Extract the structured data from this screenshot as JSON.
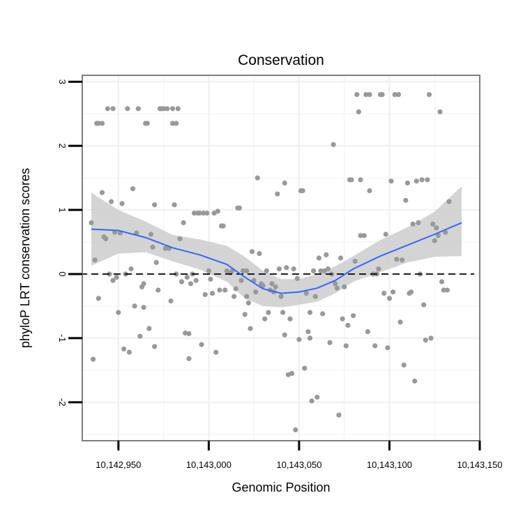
{
  "chart_data": {
    "type": "scatter",
    "title": "Conservation",
    "xlabel": "Genomic Position",
    "ylabel": "phyloP LRT conservation scores",
    "xlim": [
      10142930,
      10143150
    ],
    "ylim": [
      -2.6,
      3.1
    ],
    "x_ticks": [
      10142950,
      10143000,
      10143050,
      10143100,
      10143150
    ],
    "x_tick_labels": [
      "10,142,950",
      "10,143,000",
      "10,143,050",
      "10,143,100",
      "10,143,150"
    ],
    "y_ticks": [
      -2,
      -1,
      0,
      1,
      2,
      3
    ],
    "y_tick_labels": [
      "-2",
      "-1",
      "0",
      "1",
      "2",
      "3"
    ],
    "reference_line": {
      "y": 0,
      "style": "dashed",
      "color": "#000000"
    },
    "colors": {
      "points": "#999999",
      "smooth": "#3366ff",
      "ribbon": "#cccccc",
      "grid": "#f2f2f2",
      "frame": "#7f7f7f"
    },
    "points": [
      [
        10142935,
        0.8
      ],
      [
        10142936,
        -1.33
      ],
      [
        10142937,
        0.22
      ],
      [
        10142938,
        2.35
      ],
      [
        10142939,
        2.35
      ],
      [
        10142939,
        -0.38
      ],
      [
        10142941,
        2.35
      ],
      [
        10142941,
        1.27
      ],
      [
        10142942,
        0.58
      ],
      [
        10142943,
        0.55
      ],
      [
        10142944,
        2.58
      ],
      [
        10142945,
        0.0
      ],
      [
        10142946,
        1.13
      ],
      [
        10142947,
        2.58
      ],
      [
        10142947,
        -0.1
      ],
      [
        10142948,
        0.65
      ],
      [
        10142949,
        -0.05
      ],
      [
        10142950,
        -0.6
      ],
      [
        10142951,
        0.64
      ],
      [
        10142952,
        1.1
      ],
      [
        10142953,
        -1.17
      ],
      [
        10142954,
        0.0
      ],
      [
        10142955,
        2.58
      ],
      [
        10142956,
        -1.22
      ],
      [
        10142957,
        0.08
      ],
      [
        10142958,
        1.33
      ],
      [
        10142959,
        -0.5
      ],
      [
        10142960,
        0.64
      ],
      [
        10142961,
        2.58
      ],
      [
        10142962,
        -0.97
      ],
      [
        10142963,
        -0.2
      ],
      [
        10142964,
        -0.15
      ],
      [
        10142964,
        -0.52
      ],
      [
        10142965,
        2.35
      ],
      [
        10142966,
        2.35
      ],
      [
        10142967,
        -0.85
      ],
      [
        10142968,
        0.62
      ],
      [
        10142969,
        0.42
      ],
      [
        10142970,
        -1.13
      ],
      [
        10142970,
        1.08
      ],
      [
        10142971,
        0.18
      ],
      [
        10142972,
        -0.25
      ],
      [
        10142973,
        2.58
      ],
      [
        10142974,
        2.58
      ],
      [
        10142975,
        2.58
      ],
      [
        10142976,
        0.4
      ],
      [
        10142977,
        2.58
      ],
      [
        10142978,
        0.4
      ],
      [
        10142979,
        -0.42
      ],
      [
        10142980,
        2.58
      ],
      [
        10142980,
        2.35
      ],
      [
        10142981,
        1.08
      ],
      [
        10142982,
        2.35
      ],
      [
        10142982,
        0.0
      ],
      [
        10142983,
        2.58
      ],
      [
        10142984,
        0.55
      ],
      [
        10142985,
        -0.12
      ],
      [
        10142986,
        0.8
      ],
      [
        10142987,
        -0.92
      ],
      [
        10142988,
        -0.05
      ],
      [
        10142989,
        -0.93
      ],
      [
        10142989,
        -1.32
      ],
      [
        10142990,
        -0.15
      ],
      [
        10142991,
        0.0
      ],
      [
        10142992,
        0.95
      ],
      [
        10142993,
        -0.1
      ],
      [
        10142994,
        0.95
      ],
      [
        10142995,
        0.95
      ],
      [
        10142996,
        -1.1
      ],
      [
        10142997,
        0.95
      ],
      [
        10142998,
        -0.32
      ],
      [
        10142999,
        0.95
      ],
      [
        10143000,
        0.05
      ],
      [
        10143001,
        -0.08
      ],
      [
        10143002,
        -0.3
      ],
      [
        10143003,
        0.95
      ],
      [
        10143004,
        -1.22
      ],
      [
        10143005,
        0.98
      ],
      [
        10143006,
        -0.25
      ],
      [
        10143007,
        0.75
      ],
      [
        10143008,
        0.75
      ],
      [
        10143009,
        -0.25
      ],
      [
        10143010,
        0.05
      ],
      [
        10143012,
        0.02
      ],
      [
        10143013,
        0.05
      ],
      [
        10143014,
        -0.35
      ],
      [
        10143015,
        -0.23
      ],
      [
        10143016,
        1.03
      ],
      [
        10143017,
        1.03
      ],
      [
        10143018,
        -0.1
      ],
      [
        10143019,
        0.05
      ],
      [
        10143020,
        -0.63
      ],
      [
        10143021,
        0.05
      ],
      [
        10143021,
        -0.35
      ],
      [
        10143022,
        -0.45
      ],
      [
        10143023,
        -0.85
      ],
      [
        10143024,
        0.35
      ],
      [
        10143025,
        -0.1
      ],
      [
        10143026,
        -0.28
      ],
      [
        10143027,
        1.5
      ],
      [
        10143028,
        0.32
      ],
      [
        10143029,
        -0.15
      ],
      [
        10143030,
        -0.18
      ],
      [
        10143031,
        -0.7
      ],
      [
        10143032,
        0.05
      ],
      [
        10143033,
        -0.6
      ],
      [
        10143034,
        -0.25
      ],
      [
        10143035,
        -0.15
      ],
      [
        10143036,
        -0.28
      ],
      [
        10143037,
        -0.2
      ],
      [
        10143038,
        1.25
      ],
      [
        10143039,
        0.08
      ],
      [
        10143040,
        -0.35
      ],
      [
        10143041,
        -0.6
      ],
      [
        10143042,
        1.42
      ],
      [
        10143042,
        -0.95
      ],
      [
        10143043,
        0.1
      ],
      [
        10143044,
        -1.57
      ],
      [
        10143045,
        -0.7
      ],
      [
        10143046,
        -1.55
      ],
      [
        10143047,
        0.08
      ],
      [
        10143048,
        -2.43
      ],
      [
        10143049,
        -0.07
      ],
      [
        10143050,
        -1.02
      ],
      [
        10143051,
        1.3
      ],
      [
        10143052,
        1.3
      ],
      [
        10143053,
        -1.47
      ],
      [
        10143054,
        -0.3
      ],
      [
        10143055,
        -0.9
      ],
      [
        10143056,
        -1.0
      ],
      [
        10143056,
        -0.6
      ],
      [
        10143057,
        -1.98
      ],
      [
        10143058,
        0.05
      ],
      [
        10143059,
        -0.35
      ],
      [
        10143060,
        -1.92
      ],
      [
        10143061,
        0.25
      ],
      [
        10143062,
        0.05
      ],
      [
        10143063,
        -0.62
      ],
      [
        10143064,
        0.05
      ],
      [
        10143065,
        0.3
      ],
      [
        10143066,
        0.08
      ],
      [
        10143067,
        -1.07
      ],
      [
        10143068,
        0.0
      ],
      [
        10143069,
        2.02
      ],
      [
        10143070,
        -0.15
      ],
      [
        10143071,
        -0.22
      ],
      [
        10143072,
        -2.2
      ],
      [
        10143073,
        0.25
      ],
      [
        10143074,
        -0.7
      ],
      [
        10143075,
        -0.2
      ],
      [
        10143076,
        -1.12
      ],
      [
        10143077,
        -0.8
      ],
      [
        10143078,
        1.47
      ],
      [
        10143079,
        1.47
      ],
      [
        10143080,
        -0.65
      ],
      [
        10143081,
        0.2
      ],
      [
        10143082,
        2.8
      ],
      [
        10143083,
        2.53
      ],
      [
        10143084,
        1.47
      ],
      [
        10143084,
        0.6
      ],
      [
        10143086,
        0.6
      ],
      [
        10143087,
        2.8
      ],
      [
        10143088,
        -0.9
      ],
      [
        10143089,
        1.3
      ],
      [
        10143089,
        2.8
      ],
      [
        10143091,
        0.0
      ],
      [
        10143092,
        -1.12
      ],
      [
        10143093,
        0.0
      ],
      [
        10143094,
        0.08
      ],
      [
        10143095,
        2.8
      ],
      [
        10143096,
        2.8
      ],
      [
        10143097,
        -0.3
      ],
      [
        10143098,
        0.62
      ],
      [
        10143099,
        -1.15
      ],
      [
        10143100,
        -0.38
      ],
      [
        10143101,
        1.45
      ],
      [
        10143102,
        -0.28
      ],
      [
        10143103,
        2.8
      ],
      [
        10143104,
        0.23
      ],
      [
        10143105,
        2.8
      ],
      [
        10143106,
        -0.75
      ],
      [
        10143107,
        0.22
      ],
      [
        10143108,
        -1.42
      ],
      [
        10143109,
        1.15
      ],
      [
        10143110,
        1.42
      ],
      [
        10143111,
        -0.3
      ],
      [
        10143112,
        -0.28
      ],
      [
        10143113,
        0.78
      ],
      [
        10143114,
        -1.67
      ],
      [
        10143115,
        1.45
      ],
      [
        10143116,
        0.8
      ],
      [
        10143117,
        0.0
      ],
      [
        10143118,
        1.47
      ],
      [
        10143119,
        -0.48
      ],
      [
        10143120,
        -1.03
      ],
      [
        10143121,
        1.47
      ],
      [
        10143122,
        2.8
      ],
      [
        10143123,
        -1.0
      ],
      [
        10143124,
        0.78
      ],
      [
        10143125,
        0.52
      ],
      [
        10143126,
        0.72
      ],
      [
        10143127,
        0.6
      ],
      [
        10143128,
        2.53
      ],
      [
        10143129,
        -0.12
      ],
      [
        10143130,
        -0.25
      ],
      [
        10143131,
        0.65
      ],
      [
        10143132,
        -0.25
      ],
      [
        10143133,
        1.13
      ]
    ],
    "smooth": {
      "method": "loess",
      "x": [
        10142935,
        10142950,
        10142965,
        10142980,
        10142995,
        10143010,
        10143020,
        10143030,
        10143040,
        10143050,
        10143060,
        10143070,
        10143080,
        10143095,
        10143110,
        10143125,
        10143140
      ],
      "y": [
        0.7,
        0.68,
        0.57,
        0.41,
        0.3,
        0.15,
        -0.05,
        -0.23,
        -0.3,
        -0.28,
        -0.22,
        -0.1,
        0.08,
        0.28,
        0.45,
        0.62,
        0.8
      ],
      "ymin": [
        0.13,
        0.32,
        0.34,
        0.2,
        0.07,
        -0.12,
        -0.38,
        -0.5,
        -0.52,
        -0.48,
        -0.43,
        -0.3,
        -0.12,
        0.03,
        0.18,
        0.27,
        0.28
      ],
      "ymax": [
        1.27,
        1.0,
        0.82,
        0.61,
        0.54,
        0.44,
        0.27,
        0.05,
        -0.08,
        -0.08,
        0.0,
        0.12,
        0.28,
        0.53,
        0.73,
        0.97,
        1.37
      ]
    }
  }
}
